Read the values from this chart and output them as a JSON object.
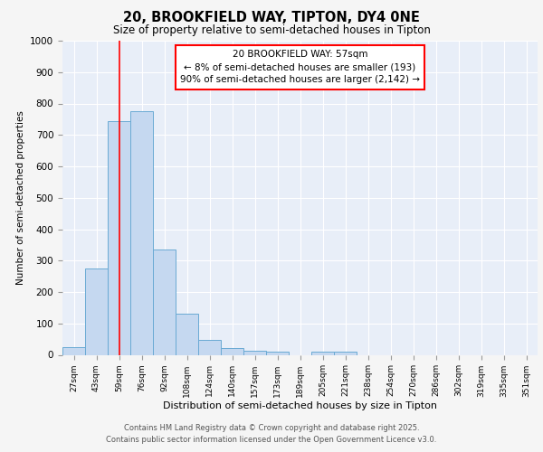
{
  "title1": "20, BROOKFIELD WAY, TIPTON, DY4 0NE",
  "title2": "Size of property relative to semi-detached houses in Tipton",
  "xlabel": "Distribution of semi-detached houses by size in Tipton",
  "ylabel": "Number of semi-detached properties",
  "categories": [
    "27sqm",
    "43sqm",
    "59sqm",
    "76sqm",
    "92sqm",
    "108sqm",
    "124sqm",
    "140sqm",
    "157sqm",
    "173sqm",
    "189sqm",
    "205sqm",
    "221sqm",
    "238sqm",
    "254sqm",
    "270sqm",
    "286sqm",
    "302sqm",
    "319sqm",
    "335sqm",
    "351sqm"
  ],
  "values": [
    25,
    275,
    745,
    775,
    335,
    130,
    47,
    22,
    12,
    10,
    0,
    10,
    10,
    0,
    0,
    0,
    0,
    0,
    0,
    0,
    0
  ],
  "bar_color": "#c5d8f0",
  "bar_edge_color": "#6aaad4",
  "red_line_x": 2.0,
  "ylim": [
    0,
    1000
  ],
  "yticks": [
    0,
    100,
    200,
    300,
    400,
    500,
    600,
    700,
    800,
    900,
    1000
  ],
  "annotation_title": "20 BROOKFIELD WAY: 57sqm",
  "annotation_line1": "← 8% of semi-detached houses are smaller (193)",
  "annotation_line2": "90% of semi-detached houses are larger (2,142) →",
  "footer1": "Contains HM Land Registry data © Crown copyright and database right 2025.",
  "footer2": "Contains public sector information licensed under the Open Government Licence v3.0.",
  "background_color": "#e8eef8",
  "fig_bg": "#f5f5f5"
}
